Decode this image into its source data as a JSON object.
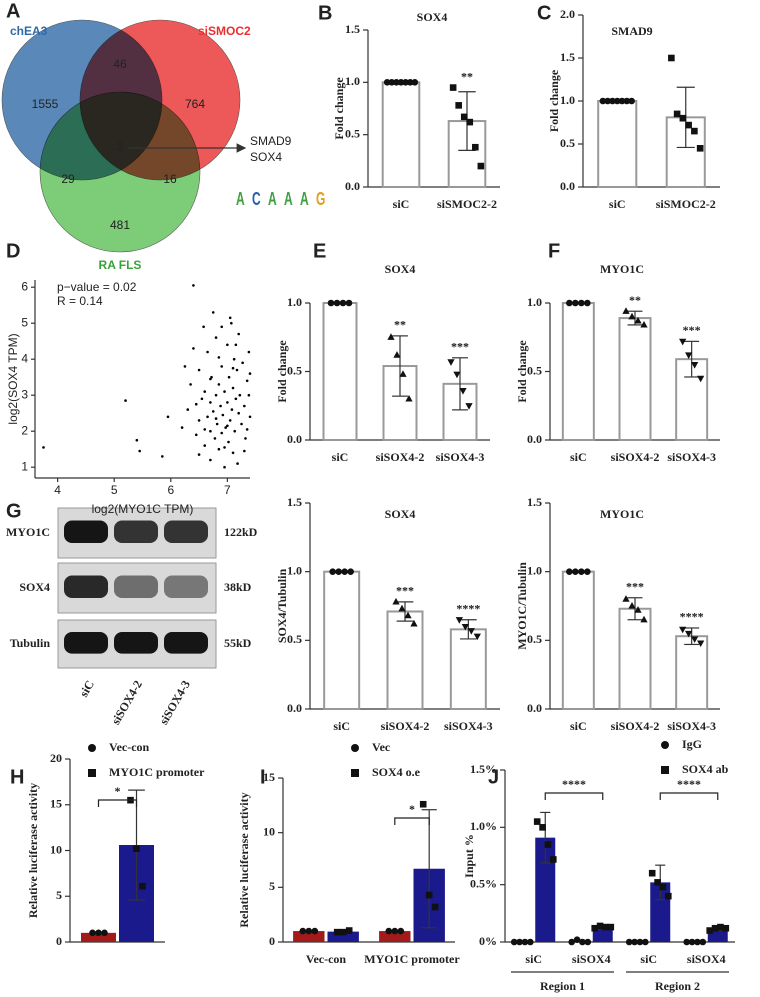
{
  "venn": {
    "panel": "A",
    "sets": [
      "chEA3",
      "siSMOC2",
      "RA FLS"
    ],
    "regions": [
      1555,
      46,
      764,
      2,
      29,
      16,
      481
    ],
    "genes": [
      "SMAD9",
      "SOX4"
    ],
    "motif": [
      "A",
      "C",
      "A",
      "A",
      "A",
      "G"
    ]
  },
  "blot": {
    "panel": "G",
    "proteins": [
      "MYO1C",
      "SOX4",
      "Tubulin"
    ],
    "sizes": [
      "122kD",
      "38kD",
      "55kD"
    ],
    "lanes": [
      "siC",
      "siSOX4-2",
      "siSOX4-3"
    ]
  },
  "chart_data": [
    {
      "type": "bar",
      "panel": "B",
      "title": "SOX4",
      "y_label": "Fold change",
      "categories": [
        "siC",
        "siSMOC2-2"
      ],
      "ylim": [
        0,
        1.5
      ],
      "yticks": [
        {
          "value": 0,
          "label": "0.0"
        },
        {
          "value": 0.5,
          "label": "0.5"
        },
        {
          "value": 1,
          "label": "1.0"
        },
        {
          "value": 1.5,
          "label": "1.5"
        }
      ],
      "markers": [
        "circle",
        "square"
      ],
      "edge_color": "#999999",
      "series": [
        {
          "color": "#ffffff",
          "values": [
            1.0,
            0.63
          ],
          "errors": [
            null,
            0.28
          ],
          "points": [
            [
              1,
              1,
              1,
              1,
              1,
              1,
              1
            ],
            [
              0.95,
              0.78,
              0.67,
              0.62,
              0.38,
              0.2
            ]
          ]
        }
      ],
      "significance": [
        null,
        "**"
      ]
    },
    {
      "type": "bar",
      "panel": "C",
      "title": "SMAD9",
      "y_label": "Fold change",
      "categories": [
        "siC",
        "siSMOC2-2"
      ],
      "ylim": [
        0,
        2
      ],
      "yticks": [
        {
          "value": 0,
          "label": "0.0"
        },
        {
          "value": 0.5,
          "label": "0.5"
        },
        {
          "value": 1,
          "label": "1.0"
        },
        {
          "value": 1.5,
          "label": "1.5"
        },
        {
          "value": 2,
          "label": "2.0"
        }
      ],
      "markers": [
        "circle",
        "square"
      ],
      "edge_color": "#999999",
      "series": [
        {
          "color": "#ffffff",
          "values": [
            1.0,
            0.81
          ],
          "errors": [
            null,
            0.35
          ],
          "points": [
            [
              1,
              1,
              1,
              1,
              1,
              1,
              1
            ],
            [
              1.5,
              0.85,
              0.8,
              0.72,
              0.65,
              0.45
            ]
          ]
        }
      ]
    },
    {
      "type": "scatter",
      "panel": "D",
      "x_label": "log2(MYO1C TPM)",
      "y_label": "log2(SOX4 TPM)",
      "annotations": [
        "p−value = 0.02",
        "R = 0.14"
      ],
      "xlim": [
        3.6,
        7.4
      ],
      "ylim": [
        0.7,
        6.2
      ],
      "xticks": [
        4,
        5,
        6,
        7
      ],
      "yticks": [
        1,
        2,
        3,
        4,
        5,
        6
      ],
      "color": "#000000",
      "x": [
        3.75,
        5.2,
        5.4,
        5.45,
        5.85,
        5.95,
        6.4,
        7.05,
        6.2,
        6.3,
        6.35,
        6.45,
        6.5,
        6.5,
        6.55,
        6.6,
        6.6,
        6.65,
        6.65,
        6.7,
        6.7,
        6.7,
        6.72,
        6.75,
        6.78,
        6.8,
        6.8,
        6.82,
        6.85,
        6.85,
        6.88,
        6.9,
        6.9,
        6.92,
        6.95,
        6.95,
        6.97,
        7.0,
        7.0,
        7.02,
        7.03,
        7.05,
        7.07,
        7.08,
        7.1,
        7.1,
        7.12,
        7.13,
        7.15,
        7.17,
        7.18,
        7.2,
        7.2,
        7.22,
        7.25,
        7.27,
        7.3,
        7.32,
        7.35,
        7.38,
        7.4,
        7.38,
        7.4,
        6.25,
        6.4,
        6.58,
        6.75,
        6.9,
        7.15,
        6.6,
        6.8,
        7.0,
        6.95,
        7.3,
        6.5,
        6.85,
        7.1,
        6.7,
        7.35,
        6.45
      ],
      "y": [
        1.55,
        2.85,
        1.75,
        1.45,
        1.3,
        2.4,
        6.05,
        5.15,
        2.1,
        2.6,
        3.3,
        1.9,
        2.3,
        3.7,
        2.9,
        1.6,
        3.1,
        2.4,
        4.2,
        1.2,
        2.0,
        2.8,
        3.5,
        2.55,
        1.8,
        3.0,
        4.6,
        2.2,
        1.5,
        3.3,
        2.7,
        1.95,
        3.8,
        2.45,
        1.0,
        3.1,
        2.1,
        2.8,
        4.4,
        1.7,
        3.5,
        2.3,
        5.0,
        2.6,
        1.4,
        3.2,
        4.0,
        2.0,
        2.9,
        3.7,
        1.1,
        2.5,
        4.7,
        3.0,
        2.2,
        3.9,
        2.7,
        1.8,
        3.4,
        4.2,
        2.4,
        3.0,
        3.6,
        3.8,
        4.3,
        4.9,
        5.3,
        4.9,
        4.4,
        2.05,
        2.35,
        2.15,
        1.55,
        1.45,
        1.35,
        4.05,
        3.75,
        3.45,
        2.05,
        2.75
      ]
    },
    {
      "type": "bar",
      "panel": "E",
      "title": "SOX4",
      "y_label": "Fold change",
      "categories": [
        "siC",
        "siSOX4-2",
        "siSOX4-3"
      ],
      "ylim": [
        0,
        1
      ],
      "yticks": [
        {
          "value": 0,
          "label": "0.0"
        },
        {
          "value": 0.5,
          "label": "0.5"
        },
        {
          "value": 1,
          "label": "1.0"
        }
      ],
      "markers": [
        "circle",
        "triangle",
        "triangle-down"
      ],
      "edge_color": "#999999",
      "series": [
        {
          "color": "#ffffff",
          "values": [
            1.0,
            0.54,
            0.41
          ],
          "errors": [
            null,
            0.22,
            0.19
          ],
          "points": [
            [
              1,
              1,
              1,
              1
            ],
            [
              0.75,
              0.62,
              0.48,
              0.3
            ],
            [
              0.57,
              0.48,
              0.36,
              0.25
            ]
          ]
        }
      ],
      "significance": [
        null,
        "**",
        "***"
      ]
    },
    {
      "type": "bar",
      "panel": "F",
      "title": "MYO1C",
      "y_label": "Fold change",
      "categories": [
        "siC",
        "siSOX4-2",
        "siSOX4-3"
      ],
      "ylim": [
        0,
        1
      ],
      "yticks": [
        {
          "value": 0,
          "label": "0.0"
        },
        {
          "value": 0.5,
          "label": "0.5"
        },
        {
          "value": 1,
          "label": "1.0"
        }
      ],
      "markers": [
        "circle",
        "triangle",
        "triangle-down"
      ],
      "edge_color": "#999999",
      "series": [
        {
          "color": "#ffffff",
          "values": [
            1.0,
            0.89,
            0.59
          ],
          "errors": [
            null,
            0.05,
            0.13
          ],
          "points": [
            [
              1,
              1,
              1,
              1
            ],
            [
              0.94,
              0.9,
              0.87,
              0.84
            ],
            [
              0.72,
              0.62,
              0.55,
              0.45
            ]
          ]
        }
      ],
      "significance": [
        null,
        "**",
        "***"
      ]
    },
    {
      "type": "bar",
      "title": "SOX4",
      "y_label": "SOX4/Tubulin",
      "categories": [
        "siC",
        "siSOX4-2",
        "siSOX4-3"
      ],
      "ylim": [
        0,
        1.5
      ],
      "yticks": [
        {
          "value": 0,
          "label": "0.0"
        },
        {
          "value": 0.5,
          "label": "0.5"
        },
        {
          "value": 1,
          "label": "1.0"
        },
        {
          "value": 1.5,
          "label": "1.5"
        }
      ],
      "markers": [
        "circle",
        "triangle",
        "triangle-down"
      ],
      "edge_color": "#999999",
      "series": [
        {
          "color": "#ffffff",
          "values": [
            1.0,
            0.71,
            0.58
          ],
          "errors": [
            null,
            0.07,
            0.07
          ],
          "points": [
            [
              1,
              1,
              1,
              1
            ],
            [
              0.78,
              0.73,
              0.68,
              0.62
            ],
            [
              0.65,
              0.6,
              0.57,
              0.53
            ]
          ]
        }
      ],
      "significance": [
        null,
        "***",
        "****"
      ]
    },
    {
      "type": "bar",
      "title": "MYO1C",
      "y_label": "MYO1C/Tubulin",
      "categories": [
        "siC",
        "siSOX4-2",
        "siSOX4-3"
      ],
      "ylim": [
        0,
        1.5
      ],
      "yticks": [
        {
          "value": 0,
          "label": "0.0"
        },
        {
          "value": 0.5,
          "label": "0.5"
        },
        {
          "value": 1,
          "label": "1.0"
        },
        {
          "value": 1.5,
          "label": "1.5"
        }
      ],
      "markers": [
        "circle",
        "triangle",
        "triangle-down"
      ],
      "edge_color": "#999999",
      "series": [
        {
          "color": "#ffffff",
          "values": [
            1.0,
            0.73,
            0.53
          ],
          "errors": [
            null,
            0.08,
            0.06
          ],
          "points": [
            [
              1,
              1,
              1,
              1
            ],
            [
              0.8,
              0.75,
              0.72,
              0.65
            ],
            [
              0.58,
              0.55,
              0.51,
              0.48
            ]
          ]
        }
      ],
      "significance": [
        null,
        "***",
        "****"
      ]
    },
    {
      "type": "bar",
      "panel": "H",
      "y_label": "Relative luciferase activity",
      "categories": [
        null
      ],
      "ylim": [
        0,
        20
      ],
      "yticks": [
        0,
        5,
        10,
        15,
        20
      ],
      "legend": "top",
      "series": [
        {
          "name": "Vec-con",
          "color": "#a31a1a",
          "marker": "circle",
          "values": [
            1.0
          ],
          "points": [
            [
              1,
              1,
              1
            ]
          ]
        },
        {
          "name": "MYO1C promoter",
          "color": "#1a1a8c",
          "marker": "square",
          "values": [
            10.6
          ],
          "errors": [
            6.0
          ],
          "points": [
            [
              15.5,
              10.2,
              6.1
            ]
          ]
        }
      ],
      "comparisons": [
        "*"
      ]
    },
    {
      "type": "bar",
      "panel": "I",
      "y_label": "Relative luciferase activity",
      "categories": [
        "Vec-con",
        "MYO1C promoter"
      ],
      "ylim": [
        0,
        15
      ],
      "yticks": [
        0,
        5,
        10,
        15
      ],
      "legend": "top",
      "series": [
        {
          "name": "Vec",
          "color": "#a31a1a",
          "marker": "circle",
          "values": [
            1.0,
            1.0
          ],
          "points": [
            [
              1,
              1,
              1
            ],
            [
              1,
              1,
              1
            ]
          ]
        },
        {
          "name": "SOX4 o.e",
          "color": "#1a1a8c",
          "marker": "square",
          "values": [
            0.95,
            6.7
          ],
          "errors": [
            0.1,
            5.4
          ],
          "points": [
            [
              0.9,
              0.9,
              1.05
            ],
            [
              12.6,
              4.3,
              3.2
            ]
          ]
        }
      ],
      "comparisons": [
        "*"
      ]
    },
    {
      "type": "bar",
      "panel": "J",
      "y_label": "Input %",
      "categories": [
        "siC",
        "siSOX4",
        "siC",
        "siSOX4"
      ],
      "groups": [
        "Region 1",
        "Region 2"
      ],
      "ylim": [
        0,
        1.5
      ],
      "yticks": [
        {
          "value": 0,
          "label": "0%"
        },
        {
          "value": 0.5,
          "label": "0.5%"
        },
        {
          "value": 1,
          "label": "1.0%"
        },
        {
          "value": 1.5,
          "label": "1.5%"
        }
      ],
      "legend": "top",
      "series": [
        {
          "name": "IgG",
          "color": "#a31a1a",
          "marker": "circle",
          "values": [
            0,
            0,
            0,
            0
          ],
          "points": [
            [
              0,
              0,
              0,
              0
            ],
            [
              0,
              0.02,
              0,
              0
            ],
            [
              0,
              0,
              0,
              0
            ],
            [
              0,
              0,
              0,
              0
            ]
          ]
        },
        {
          "name": "SOX4 ab",
          "color": "#1a1a8c",
          "marker": "square",
          "values": [
            0.91,
            0.13,
            0.52,
            0.12
          ],
          "errors": [
            0.22,
            0.02,
            0.15,
            0.02
          ],
          "points": [
            [
              1.05,
              1.0,
              0.85,
              0.72
            ],
            [
              0.12,
              0.14,
              0.13,
              0.13
            ],
            [
              0.6,
              0.52,
              0.48,
              0.4
            ],
            [
              0.1,
              0.12,
              0.13,
              0.12
            ]
          ]
        }
      ],
      "comparisons": [
        "****",
        "****"
      ]
    }
  ]
}
